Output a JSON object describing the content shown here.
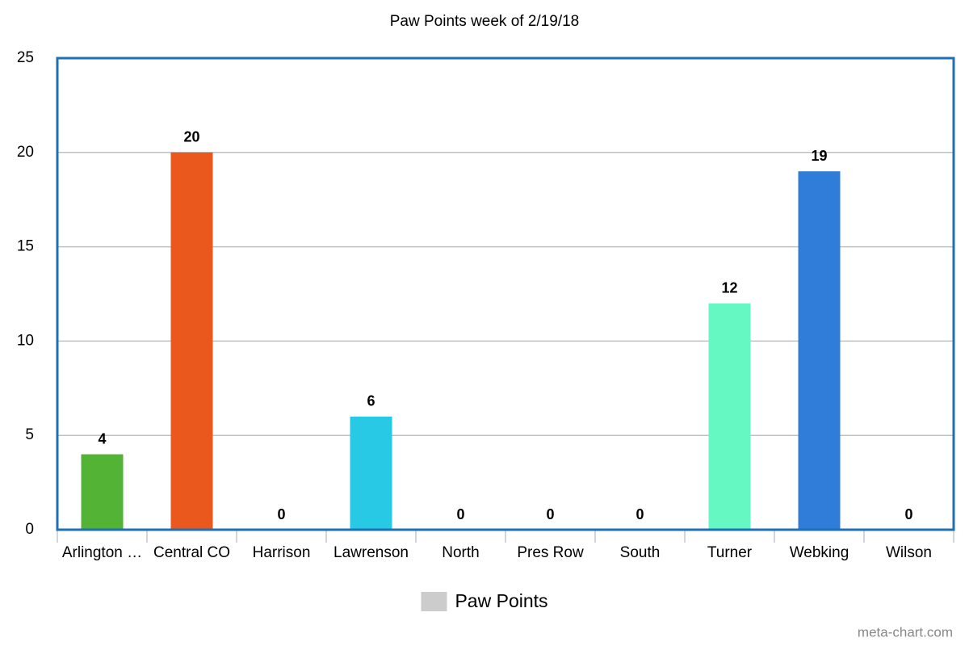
{
  "chart_data": {
    "type": "bar",
    "title": "Paw Points week of 2/19/18",
    "categories": [
      "Arlington …",
      "Central CO",
      "Harrison",
      "Lawrenson",
      "North",
      "Pres Row",
      "South",
      "Turner",
      "Webking",
      "Wilson"
    ],
    "values": [
      4,
      20,
      0,
      6,
      0,
      0,
      0,
      12,
      19,
      0
    ],
    "colors": [
      "#52b335",
      "#eb581d",
      "#9c4fd6",
      "#27c9e5",
      "#e8a33a",
      "#d63c7a",
      "#8ab83b",
      "#66f8c3",
      "#2f7dd8",
      "#c04a4a"
    ],
    "legend": {
      "label": "Paw Points",
      "color": "#cccccc"
    },
    "ylim": [
      0,
      25
    ],
    "yticks": [
      0,
      5,
      10,
      15,
      20,
      25
    ],
    "grid": true,
    "border_color": "#1f6fb5",
    "watermark": "meta-chart.com"
  }
}
